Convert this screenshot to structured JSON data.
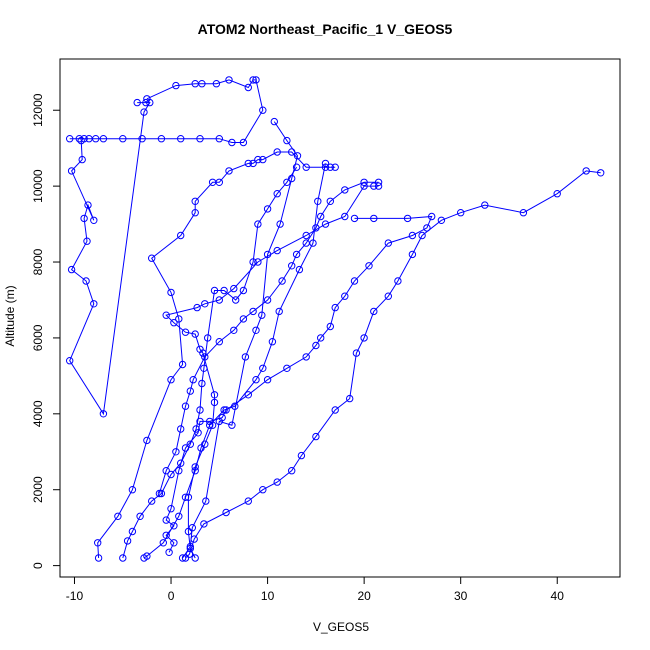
{
  "chart_data": {
    "type": "line",
    "title": "ATOM2 Northeast_Pacific_1 V_GEOS5",
    "xlabel": "V_GEOS5",
    "ylabel": "Altitude (m)",
    "xlim": [
      -11.5,
      46.5
    ],
    "ylim": [
      -300,
      13350
    ],
    "xticks": [
      -10,
      0,
      10,
      20,
      30,
      40
    ],
    "yticks": [
      0,
      2000,
      4000,
      6000,
      8000,
      10000,
      12000
    ],
    "xtick_labels": [
      "-10",
      "0",
      "10",
      "20",
      "30",
      "40"
    ],
    "ytick_labels": [
      "0",
      "2000",
      "4000",
      "6000",
      "8000",
      "10000",
      "12000"
    ],
    "grid": false,
    "legend": "none",
    "series_color": "#0000ff",
    "marker": "open-circle",
    "series": [
      {
        "points": [
          [
            -7.5,
            200
          ],
          [
            -7.6,
            600
          ],
          [
            -5.5,
            1300
          ],
          [
            -4.0,
            2000
          ],
          [
            -2.5,
            3300
          ],
          [
            0.0,
            4900
          ],
          [
            1.2,
            5300
          ],
          [
            0.8,
            6500
          ],
          [
            0.0,
            7200
          ],
          [
            -2,
            8100
          ],
          [
            1,
            8700
          ],
          [
            2.5,
            9300
          ],
          [
            2.5,
            9600
          ],
          [
            4.3,
            10100
          ],
          [
            5,
            10100
          ],
          [
            6,
            10400
          ],
          [
            8,
            10600
          ],
          [
            8.5,
            10600
          ],
          [
            9,
            10700
          ],
          [
            9.5,
            10700
          ],
          [
            11,
            10900
          ],
          [
            12.5,
            10900
          ],
          [
            14,
            10500
          ],
          [
            16,
            10500
          ],
          [
            17,
            10500
          ],
          [
            16.5,
            10500
          ]
        ]
      },
      {
        "points": [
          [
            -10.5,
            11250
          ],
          [
            -9.5,
            11250
          ],
          [
            -9,
            11250
          ],
          [
            -8.5,
            11250
          ],
          [
            -7.8,
            11250
          ],
          [
            -7,
            11250
          ],
          [
            -5,
            11250
          ],
          [
            -3,
            11250
          ],
          [
            -1,
            11250
          ],
          [
            1,
            11250
          ],
          [
            3,
            11250
          ],
          [
            5,
            11250
          ],
          [
            6.3,
            11150
          ],
          [
            7.5,
            11150
          ],
          [
            9.5,
            12000
          ],
          [
            8.8,
            12800
          ],
          [
            8.5,
            12800
          ],
          [
            8,
            12600
          ],
          [
            6,
            12800
          ],
          [
            4.7,
            12700
          ],
          [
            3.2,
            12700
          ],
          [
            2.5,
            12700
          ],
          [
            0.5,
            12650
          ],
          [
            -2.5,
            12300
          ]
        ]
      },
      {
        "points": [
          [
            -3.5,
            12200
          ],
          [
            -2.6,
            12200
          ],
          [
            -2.2,
            12200
          ],
          [
            -2.8,
            11950
          ],
          [
            -7.0,
            4000
          ],
          [
            -10.5,
            5400
          ],
          [
            -8.0,
            6900
          ],
          [
            -8.8,
            7500
          ],
          [
            -10.3,
            7800
          ],
          [
            -8.7,
            8550
          ],
          [
            -9.0,
            9150
          ],
          [
            -8.6,
            9500
          ],
          [
            -8.0,
            9100
          ],
          [
            -10.3,
            10400
          ],
          [
            -9.2,
            10700
          ],
          [
            -9.3,
            11200
          ]
        ]
      },
      {
        "points": [
          [
            -2.8,
            200
          ],
          [
            -2.5,
            250
          ],
          [
            -0.8,
            600
          ],
          [
            0.8,
            1300
          ],
          [
            1.5,
            1800
          ],
          [
            2.5,
            2500
          ],
          [
            3.1,
            3100
          ],
          [
            4.0,
            3700
          ],
          [
            5.5,
            4100
          ],
          [
            6.6,
            4200
          ],
          [
            8.8,
            4900
          ],
          [
            9.5,
            5200
          ],
          [
            10.5,
            5900
          ],
          [
            11.2,
            6700
          ],
          [
            13.3,
            7800
          ],
          [
            14.7,
            8500
          ],
          [
            15.2,
            9600
          ],
          [
            16.0,
            10600
          ]
        ]
      },
      {
        "points": [
          [
            1.2,
            200
          ],
          [
            2.0,
            500
          ],
          [
            2.2,
            1000
          ],
          [
            3.6,
            1700
          ],
          [
            5.0,
            3800
          ],
          [
            6.3,
            3700
          ],
          [
            7.7,
            5500
          ],
          [
            8.8,
            6200
          ],
          [
            9.4,
            6600
          ],
          [
            10.0,
            8200
          ],
          [
            11.3,
            9000
          ],
          [
            12.5,
            10200
          ],
          [
            13.1,
            10800
          ],
          [
            12.0,
            11200
          ],
          [
            10.7,
            11700
          ]
        ]
      },
      {
        "points": [
          [
            -5,
            200
          ],
          [
            -4.5,
            650
          ],
          [
            -4,
            900
          ],
          [
            -3.2,
            1300
          ],
          [
            -2,
            1700
          ],
          [
            -1,
            1900
          ],
          [
            0,
            2400
          ],
          [
            1,
            2700
          ],
          [
            2,
            3200
          ],
          [
            2.6,
            3600
          ],
          [
            3.0,
            4100
          ],
          [
            3.2,
            4800
          ],
          [
            3.4,
            5200
          ],
          [
            3.8,
            6000
          ],
          [
            4.5,
            7250
          ],
          [
            5.5,
            7250
          ],
          [
            6.7,
            7000
          ],
          [
            7.5,
            7250
          ],
          [
            8.5,
            8000
          ],
          [
            9.0,
            9000
          ],
          [
            10.0,
            9400
          ],
          [
            11.0,
            9800
          ],
          [
            12.0,
            10100
          ],
          [
            13.0,
            10500
          ]
        ]
      },
      {
        "points": [
          [
            1.5,
            200
          ],
          [
            1.9,
            300
          ],
          [
            2.4,
            700
          ],
          [
            3.4,
            1100
          ],
          [
            5.7,
            1400
          ],
          [
            8.0,
            1700
          ],
          [
            9.5,
            2000
          ],
          [
            11.0,
            2200
          ],
          [
            12.5,
            2500
          ],
          [
            13.5,
            2900
          ],
          [
            15.0,
            3400
          ],
          [
            17.0,
            4100
          ],
          [
            18.5,
            4400
          ],
          [
            19.2,
            5600
          ],
          [
            20.0,
            6000
          ],
          [
            21.0,
            6700
          ],
          [
            22.5,
            7100
          ],
          [
            23.5,
            7500
          ],
          [
            25.0,
            8200
          ],
          [
            26.0,
            8700
          ],
          [
            28.0,
            9100
          ],
          [
            30.0,
            9300
          ],
          [
            32.5,
            9500
          ],
          [
            36.5,
            9300
          ],
          [
            40.0,
            9800
          ],
          [
            43.0,
            10400
          ],
          [
            44.5,
            10350
          ]
        ]
      },
      {
        "points": [
          [
            2.5,
            200
          ],
          [
            2.0,
            450
          ],
          [
            1.8,
            900
          ],
          [
            1.8,
            1800
          ],
          [
            2.5,
            2600
          ],
          [
            3.5,
            3200
          ],
          [
            4.3,
            3700
          ],
          [
            4.5,
            4300
          ],
          [
            4.5,
            4500
          ],
          [
            3.3,
            5600
          ],
          [
            3.0,
            5700
          ],
          [
            2.5,
            6100
          ],
          [
            1.5,
            6150
          ],
          [
            0.3,
            6400
          ],
          [
            -0.5,
            6600
          ],
          [
            2.7,
            6800
          ],
          [
            3.5,
            6900
          ],
          [
            5.0,
            7000
          ],
          [
            6.5,
            7300
          ],
          [
            9.0,
            8000
          ],
          [
            11.0,
            8300
          ],
          [
            14.0,
            8700
          ],
          [
            16.0,
            9000
          ],
          [
            18.0,
            9200
          ],
          [
            20.0,
            10000
          ],
          [
            21.0,
            10000
          ],
          [
            21.5,
            10000
          ]
        ]
      },
      {
        "points": [
          [
            -0.2,
            350
          ],
          [
            0.3,
            600
          ],
          [
            -0.5,
            800
          ],
          [
            0.3,
            1050
          ],
          [
            -0.5,
            1200
          ],
          [
            0.0,
            1500
          ],
          [
            0.8,
            2500
          ],
          [
            1.5,
            3100
          ],
          [
            2.8,
            3500
          ],
          [
            3.0,
            3800
          ],
          [
            4.0,
            3800
          ],
          [
            5.3,
            3900
          ],
          [
            5.7,
            4100
          ],
          [
            8.0,
            4500
          ],
          [
            10.0,
            4900
          ],
          [
            12.0,
            5200
          ],
          [
            14.0,
            5500
          ],
          [
            15.0,
            5800
          ],
          [
            15.5,
            6000
          ],
          [
            16.5,
            6300
          ],
          [
            17.0,
            6800
          ],
          [
            18.0,
            7100
          ],
          [
            19.0,
            7500
          ],
          [
            20.5,
            7900
          ],
          [
            22.5,
            8500
          ],
          [
            25.0,
            8700
          ],
          [
            26.5,
            8900
          ],
          [
            27.0,
            9200
          ],
          [
            24.5,
            9150
          ],
          [
            21.0,
            9150
          ],
          [
            19.0,
            9150
          ]
        ]
      },
      {
        "points": [
          [
            -1.2,
            1900
          ],
          [
            -0.5,
            2500
          ],
          [
            0.5,
            3000
          ],
          [
            1.0,
            3600
          ],
          [
            1.5,
            4200
          ],
          [
            2.0,
            4600
          ],
          [
            2.3,
            4900
          ],
          [
            3.5,
            5500
          ],
          [
            5.0,
            5900
          ],
          [
            6.5,
            6200
          ],
          [
            7.5,
            6500
          ],
          [
            8.5,
            6700
          ],
          [
            10.0,
            7000
          ],
          [
            11.5,
            7500
          ],
          [
            12.5,
            7900
          ],
          [
            13.0,
            8200
          ],
          [
            14.0,
            8500
          ],
          [
            15.0,
            8900
          ],
          [
            15.5,
            9200
          ],
          [
            16.5,
            9600
          ],
          [
            18.0,
            9900
          ],
          [
            20.0,
            10100
          ],
          [
            21.5,
            10100
          ]
        ]
      }
    ]
  }
}
